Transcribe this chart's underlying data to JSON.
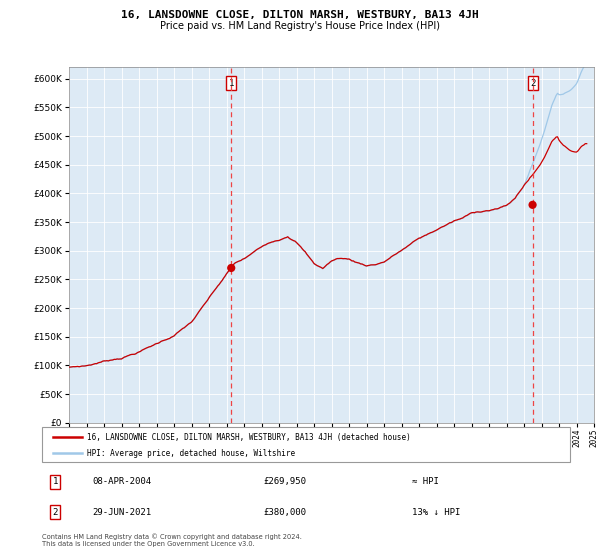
{
  "title": "16, LANSDOWNE CLOSE, DILTON MARSH, WESTBURY, BA13 4JH",
  "subtitle": "Price paid vs. HM Land Registry's House Price Index (HPI)",
  "legend_line1": "16, LANSDOWNE CLOSE, DILTON MARSH, WESTBURY, BA13 4JH (detached house)",
  "legend_line2": "HPI: Average price, detached house, Wiltshire",
  "annotation1_date": "08-APR-2004",
  "annotation1_price": "£269,950",
  "annotation1_hpi": "≈ HPI",
  "annotation2_date": "29-JUN-2021",
  "annotation2_price": "£380,000",
  "annotation2_hpi": "13% ↓ HPI",
  "footer": "Contains HM Land Registry data © Crown copyright and database right 2024.\nThis data is licensed under the Open Government Licence v3.0.",
  "hpi_color": "#a0c8e8",
  "price_color": "#cc0000",
  "vline_color": "#ee4444",
  "point_color": "#cc0000",
  "plot_bg": "#ddeaf5",
  "grid_color": "#ffffff",
  "sale1_x": 2004.27,
  "sale1_y": 269950,
  "sale2_x": 2021.49,
  "sale2_y": 380000,
  "xmin": 1995,
  "xmax": 2025,
  "ylim": [
    0,
    620000
  ],
  "yticks": [
    0,
    50000,
    100000,
    150000,
    200000,
    250000,
    300000,
    350000,
    400000,
    450000,
    500000,
    550000,
    600000
  ]
}
